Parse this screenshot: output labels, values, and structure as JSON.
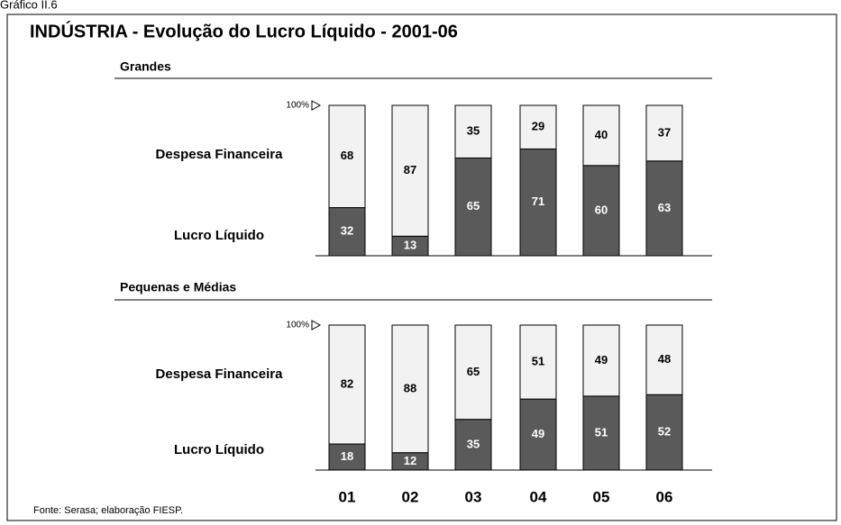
{
  "caption": "Gráfico II.6",
  "title": "INDÚSTRIA - Evolução do Lucro Líquido - 2001-06",
  "categories": [
    "01",
    "02",
    "03",
    "04",
    "05",
    "06"
  ],
  "source": "Fonte: Serasa; elaboração FIESP.",
  "chart_data": [
    {
      "type": "stacked_bar",
      "title": "Grandes",
      "ylim": [
        0,
        100
      ],
      "yticks": [
        {
          "value": 100,
          "label": "100%"
        }
      ],
      "series": [
        {
          "name": "Lucro Líquido",
          "color": "#5a5a5a",
          "values": [
            32,
            13,
            65,
            71,
            60,
            63
          ]
        },
        {
          "name": "Despesa Financeira",
          "color": "#f2f2f2",
          "values": [
            68,
            87,
            35,
            29,
            40,
            37
          ]
        }
      ]
    },
    {
      "type": "stacked_bar",
      "title": "Pequenas e Médias",
      "ylim": [
        0,
        100
      ],
      "yticks": [
        {
          "value": 100,
          "label": "100%"
        }
      ],
      "series": [
        {
          "name": "Lucro Líquido",
          "color": "#5a5a5a",
          "values": [
            18,
            12,
            35,
            49,
            51,
            52
          ]
        },
        {
          "name": "Despesa Financeira",
          "color": "#f2f2f2",
          "values": [
            82,
            88,
            65,
            51,
            49,
            48
          ]
        }
      ]
    }
  ]
}
